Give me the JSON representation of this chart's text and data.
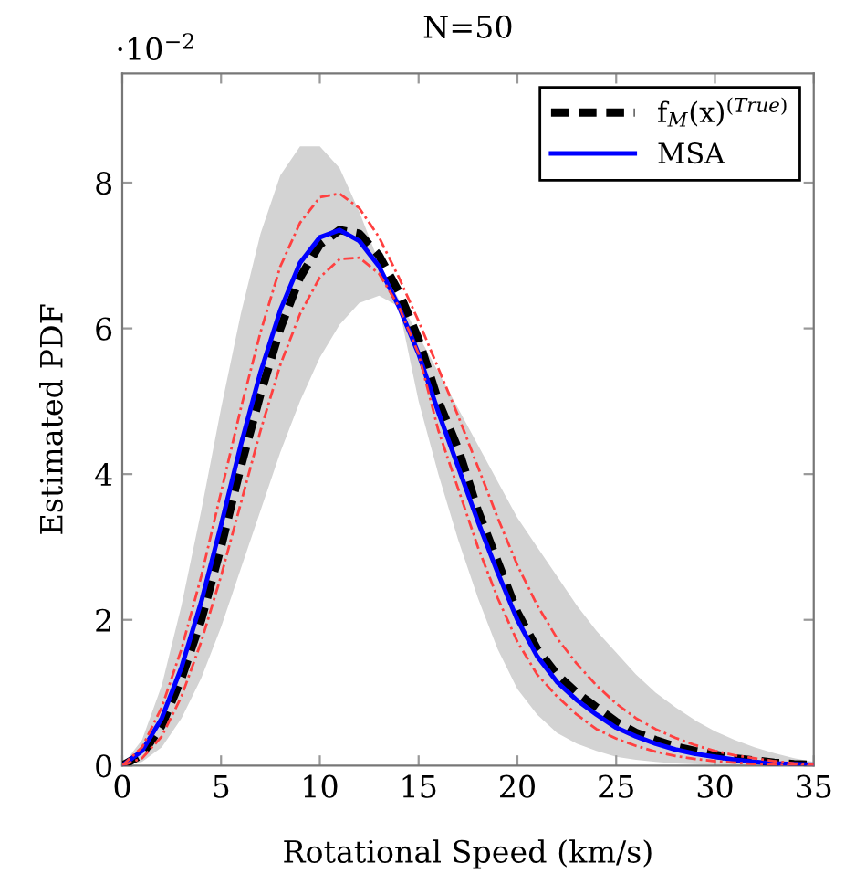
{
  "chart_data": {
    "type": "line",
    "title": "N=50",
    "xlabel": "Rotational Speed (km/s)",
    "ylabel": "Estimated PDF",
    "annotations": [
      "·10$^{−2}$"
    ],
    "x": [
      0,
      1,
      2,
      3,
      4,
      5,
      6,
      7,
      8,
      9,
      10,
      11,
      12,
      13,
      14,
      15,
      16,
      17,
      18,
      19,
      20,
      21,
      22,
      23,
      24,
      25,
      26,
      27,
      28,
      29,
      30,
      31,
      32,
      33,
      34,
      35
    ],
    "xlim": [
      0,
      35
    ],
    "xticks": [
      0,
      5,
      10,
      15,
      20,
      25,
      30,
      35
    ],
    "ylim": [
      0,
      9.5
    ],
    "yticks": [
      0,
      2,
      4,
      6,
      8
    ],
    "legend": "top right",
    "grid": false,
    "series": [
      {
        "name": "f$_{M}$(x)$^{(True)}$",
        "color": "#000000",
        "line_style": "dashed",
        "values": [
          0,
          0.15,
          0.55,
          1.2,
          2.0,
          3.0,
          4.1,
          5.1,
          6.0,
          6.7,
          7.15,
          7.35,
          7.3,
          7.0,
          6.5,
          5.85,
          5.0,
          4.35,
          3.5,
          2.8,
          2.1,
          1.6,
          1.25,
          1.0,
          0.8,
          0.6,
          0.45,
          0.35,
          0.26,
          0.2,
          0.15,
          0.1,
          0.07,
          0.04,
          0.02,
          0.01
        ]
      },
      {
        "name": "MSA",
        "color": "#0000ff",
        "line_style": "solid",
        "values": [
          0,
          0.2,
          0.65,
          1.35,
          2.25,
          3.3,
          4.4,
          5.4,
          6.25,
          6.9,
          7.25,
          7.35,
          7.2,
          6.85,
          6.3,
          5.65,
          4.85,
          4.1,
          3.35,
          2.65,
          2.0,
          1.5,
          1.15,
          0.9,
          0.7,
          0.52,
          0.4,
          0.3,
          0.22,
          0.16,
          0.12,
          0.08,
          0.05,
          0.03,
          0.02,
          0.01
        ],
        "lower": [
          0,
          0.05,
          0.25,
          0.65,
          1.2,
          1.9,
          2.7,
          3.5,
          4.3,
          5.0,
          5.6,
          6.05,
          6.35,
          6.45,
          6.3,
          5.0,
          4.0,
          3.1,
          2.3,
          1.6,
          1.05,
          0.7,
          0.45,
          0.3,
          0.2,
          0.12,
          0.08,
          0.05,
          0.03,
          0.02,
          0.01,
          0,
          0,
          0,
          0,
          0
        ],
        "upper": [
          0,
          0.35,
          1.1,
          2.2,
          3.5,
          4.9,
          6.2,
          7.3,
          8.1,
          8.5,
          8.5,
          8.2,
          7.6,
          6.9,
          6.4,
          5.9,
          5.4,
          4.9,
          4.4,
          3.9,
          3.4,
          3.0,
          2.6,
          2.2,
          1.85,
          1.55,
          1.25,
          1.0,
          0.8,
          0.62,
          0.47,
          0.35,
          0.25,
          0.17,
          0.1,
          0.05
        ]
      },
      {
        "color": "#ff4040",
        "line_style": "dotted",
        "values": [
          0,
          0.25,
          0.8,
          1.6,
          2.6,
          3.75,
          4.9,
          5.95,
          6.85,
          7.45,
          7.8,
          7.85,
          7.65,
          7.25,
          6.7,
          6.1,
          5.45,
          4.8,
          4.1,
          3.4,
          2.75,
          2.2,
          1.75,
          1.4,
          1.1,
          0.85,
          0.65,
          0.5,
          0.38,
          0.28,
          0.2,
          0.14,
          0.1,
          0.06,
          0.03,
          0.01
        ]
      },
      {
        "color": "#ff4040",
        "line_style": "dotted",
        "values": [
          0,
          0.1,
          0.4,
          0.95,
          1.7,
          2.6,
          3.6,
          4.6,
          5.5,
          6.2,
          6.7,
          6.95,
          6.97,
          6.75,
          6.3,
          5.65,
          4.6,
          3.8,
          3.0,
          2.3,
          1.7,
          1.25,
          0.95,
          0.7,
          0.5,
          0.37,
          0.27,
          0.19,
          0.13,
          0.09,
          0.06,
          0.04,
          0.02,
          0.01,
          0,
          0
        ]
      }
    ]
  }
}
